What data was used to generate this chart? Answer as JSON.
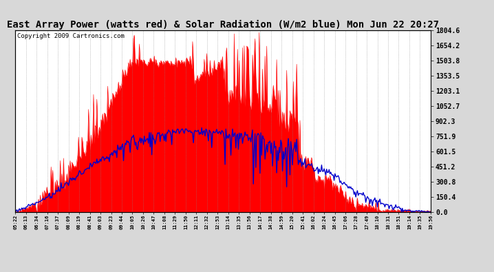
{
  "title": "East Array Power (watts red) & Solar Radiation (W/m2 blue) Mon Jun 22 20:27",
  "copyright": "Copyright 2009 Cartronics.com",
  "y_max": 1804.6,
  "y_min": 0.0,
  "y_ticks": [
    0.0,
    150.4,
    300.8,
    451.2,
    601.5,
    751.9,
    902.3,
    1052.7,
    1203.1,
    1353.5,
    1503.8,
    1654.2,
    1804.6
  ],
  "x_labels": [
    "05:22",
    "06:13",
    "06:34",
    "07:16",
    "07:37",
    "08:09",
    "08:19",
    "08:41",
    "09:03",
    "09:23",
    "09:44",
    "10:05",
    "10:26",
    "10:47",
    "11:08",
    "11:29",
    "11:50",
    "12:11",
    "12:32",
    "12:53",
    "13:14",
    "13:35",
    "13:56",
    "14:17",
    "14:38",
    "14:59",
    "15:20",
    "15:41",
    "16:02",
    "16:24",
    "16:45",
    "17:06",
    "17:28",
    "17:49",
    "18:10",
    "18:31",
    "18:51",
    "19:14",
    "19:35",
    "19:56"
  ],
  "bg_color": "#d8d8d8",
  "plot_bg": "#ffffff",
  "red_color": "#ff0000",
  "blue_color": "#0000cc",
  "title_fontsize": 10,
  "copyright_fontsize": 6.5
}
